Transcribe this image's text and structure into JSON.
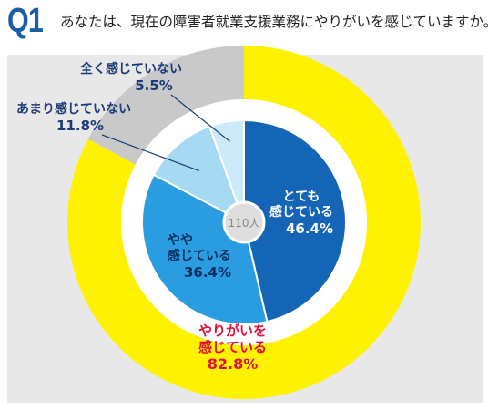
{
  "question": {
    "label": "Q1",
    "text": "あなたは、現在の障害者就業支援業務にやりがいを感じていますか。"
  },
  "colors": {
    "accent_blue": "#1b5ea8",
    "panel_bg": "#e8e8e8",
    "outer_yes": "#fff200",
    "outer_no": "#c9c9c9",
    "seg1": "#1565b7",
    "seg2": "#2a9de0",
    "seg3": "#a6daf2",
    "seg4": "#cdeaf8",
    "label_red": "#e0103a",
    "label_navy": "#1a3a78"
  },
  "chart_data": {
    "type": "pie",
    "center_label": "110人",
    "inner": [
      {
        "label_lines": [
          "とても",
          "感じている"
        ],
        "value": 46.4,
        "value_text": "46.4%"
      },
      {
        "label_lines": [
          "やや",
          "感じている"
        ],
        "value": 36.4,
        "value_text": "36.4%"
      },
      {
        "label_lines": [
          "あまり感じていない"
        ],
        "value": 11.8,
        "value_text": "11.8%"
      },
      {
        "label_lines": [
          "全く感じていない"
        ],
        "value": 5.5,
        "value_text": "5.5%"
      }
    ],
    "outer": [
      {
        "label_lines": [
          "やりがいを",
          "感じている"
        ],
        "value": 82.8,
        "value_text": "82.8%"
      },
      {
        "label": "",
        "value": 17.2
      }
    ]
  }
}
